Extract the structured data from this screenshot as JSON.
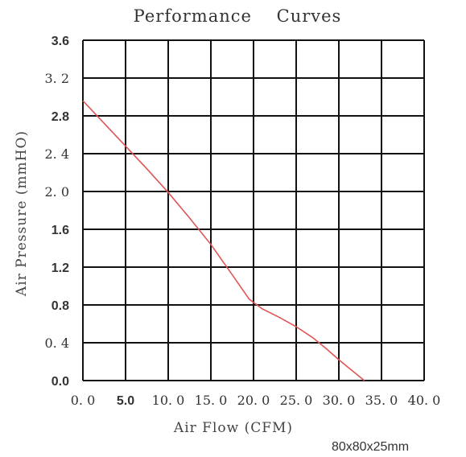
{
  "chart_data": {
    "type": "line",
    "title": "Performance    Curves",
    "xlabel": "Air Flow (CFM)",
    "ylabel": "Air Pressure (mmHO)",
    "xlim": [
      0,
      40
    ],
    "ylim": [
      0,
      3.6
    ],
    "x_ticks": [
      "0. 0",
      "5.0",
      "10. 0",
      "15. 0",
      "20. 0",
      "25. 0",
      "30. 0",
      "35. 0",
      "40. 0"
    ],
    "y_ticks": [
      "0.0",
      "0. 4",
      "0.8",
      "1.2",
      "1.6",
      "2. 0",
      "2. 4",
      "2.8",
      "3. 2",
      "3.6"
    ],
    "grid": true,
    "series": [
      {
        "color": "#e05555",
        "x": [
          0,
          2.5,
          5,
          7.5,
          10,
          12.5,
          15,
          17.5,
          19.5,
          21,
          23,
          25,
          27,
          28.5,
          30,
          31.5,
          33
        ],
        "y": [
          2.96,
          2.72,
          2.48,
          2.24,
          1.99,
          1.72,
          1.44,
          1.12,
          0.86,
          0.76,
          0.67,
          0.57,
          0.45,
          0.34,
          0.22,
          0.11,
          0.0
        ]
      }
    ]
  },
  "footnote": "80x80x25mm"
}
